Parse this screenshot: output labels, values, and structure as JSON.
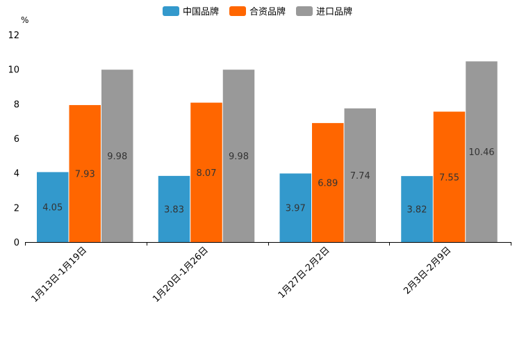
{
  "chart_data": {
    "type": "bar",
    "title": "",
    "xlabel": "",
    "ylabel": "%",
    "ylim": [
      0,
      12
    ],
    "yticks": [
      0,
      2,
      4,
      6,
      8,
      10,
      12
    ],
    "grid": false,
    "legend_position": "top-center",
    "categories": [
      "1月13日-1月19日",
      "1月20日-1月26日",
      "1月27日-2月2日",
      "2月3日-2月9日"
    ],
    "series": [
      {
        "name": "中国品牌",
        "color": "#3399cc",
        "values": [
          4.05,
          3.83,
          3.97,
          3.82
        ]
      },
      {
        "name": "合资品牌",
        "color": "#ff6600",
        "values": [
          7.93,
          8.07,
          6.89,
          7.55
        ]
      },
      {
        "name": "进口品牌",
        "color": "#999999",
        "values": [
          9.98,
          9.98,
          7.74,
          10.46
        ]
      }
    ]
  }
}
